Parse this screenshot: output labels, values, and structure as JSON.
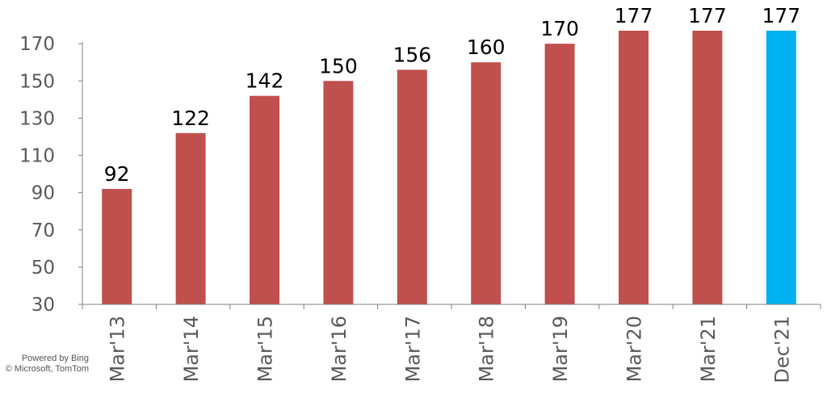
{
  "chart_data": {
    "type": "bar",
    "categories": [
      "Mar'13",
      "Mar'14",
      "Mar'15",
      "Mar'16",
      "Mar'17",
      "Mar'18",
      "Mar'19",
      "Mar'20",
      "Mar'21",
      "Dec'21"
    ],
    "values": [
      92,
      122,
      142,
      150,
      156,
      160,
      170,
      177,
      177,
      177
    ],
    "data_labels": [
      "92",
      "122",
      "142",
      "150",
      "156",
      "160",
      "170",
      "177",
      "177",
      "177"
    ],
    "ylim": [
      30,
      177
    ],
    "yticks": [
      30,
      50,
      70,
      90,
      110,
      130,
      150,
      170
    ],
    "title": "",
    "xlabel": "",
    "ylabel": "",
    "grid": false,
    "legend": "none",
    "colors": {
      "bar": "#C0504D",
      "highlight_bar": "#00B0F0",
      "axis": "#808080",
      "tick_text": "#595959",
      "data_label_text": "#000000"
    },
    "highlight_index": 9
  },
  "map_attribution": {
    "line1": "Powered by Bing",
    "line2": "© Microsoft, TomTom"
  }
}
